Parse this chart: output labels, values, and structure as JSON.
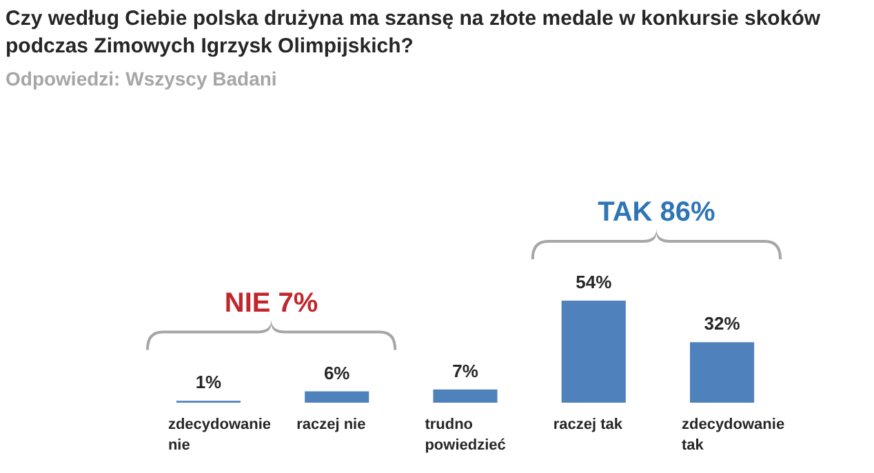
{
  "chart_data": {
    "type": "bar",
    "title": "Czy według Ciebie polska drużyna ma szansę na złote medale w konkursie skoków podczas Zimowych Igrzysk Olimpijskich?",
    "subtitle": "Odpowiedzi: Wszyscy Badani",
    "categories": [
      "zdecydowanie nie",
      "raczej nie",
      "trudno powiedzieć",
      "raczej tak",
      "zdecydowanie tak"
    ],
    "values": [
      1,
      6,
      7,
      54,
      32
    ],
    "color": "#4f81bd",
    "value_labels": [
      "1%",
      "6%",
      "7%",
      "54%",
      "32%"
    ],
    "annotations": [
      "NIE 7%",
      "TAK 86%"
    ]
  }
}
